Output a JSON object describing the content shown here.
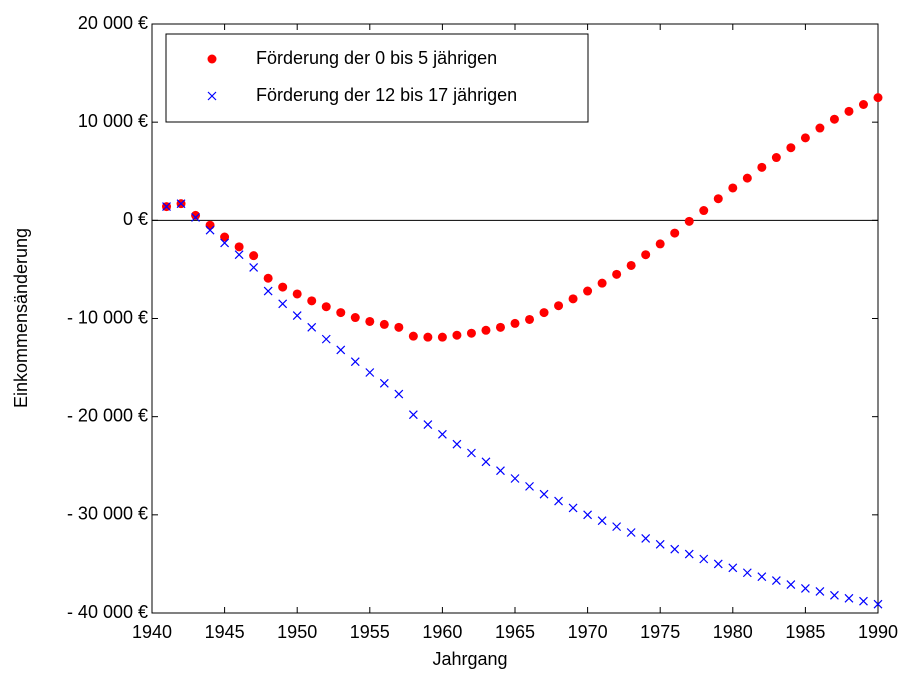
{
  "chart_data": {
    "type": "scatter",
    "xlabel": "Jahrgang",
    "ylabel": "Einkommensänderung",
    "x": [
      1941,
      1942,
      1943,
      1944,
      1945,
      1946,
      1947,
      1948,
      1949,
      1950,
      1951,
      1952,
      1953,
      1954,
      1955,
      1956,
      1957,
      1958,
      1959,
      1960,
      1961,
      1962,
      1963,
      1964,
      1965,
      1966,
      1967,
      1968,
      1969,
      1970,
      1971,
      1972,
      1973,
      1974,
      1975,
      1976,
      1977,
      1978,
      1979,
      1980,
      1981,
      1982,
      1983,
      1984,
      1985,
      1986,
      1987,
      1988,
      1989,
      1990
    ],
    "series": [
      {
        "name": "Förderung der 0 bis 5 jährigen",
        "color": "#ff0000",
        "marker": "circle",
        "values": [
          1400,
          1700,
          500,
          -500,
          -1700,
          -2700,
          -3600,
          -5900,
          -6800,
          -7500,
          -8200,
          -8800,
          -9400,
          -9900,
          -10300,
          -10600,
          -10900,
          -11800,
          -11900,
          -11900,
          -11700,
          -11500,
          -11200,
          -10900,
          -10500,
          -10100,
          -9400,
          -8700,
          -8000,
          -7200,
          -6400,
          -5500,
          -4600,
          -3500,
          -2400,
          -1300,
          -100,
          1000,
          2200,
          3300,
          4300,
          5400,
          6400,
          7400,
          8400,
          9400,
          10300,
          11100,
          11800,
          12500
        ]
      },
      {
        "name": "Förderung der 12 bis 17 jährigen",
        "color": "#0000ff",
        "marker": "x",
        "values": [
          1400,
          1700,
          300,
          -1000,
          -2300,
          -3500,
          -4800,
          -7200,
          -8500,
          -9700,
          -10900,
          -12100,
          -13200,
          -14400,
          -15500,
          -16600,
          -17700,
          -19800,
          -20800,
          -21800,
          -22800,
          -23700,
          -24600,
          -25500,
          -26300,
          -27100,
          -27900,
          -28600,
          -29300,
          -30000,
          -30600,
          -31200,
          -31800,
          -32400,
          -33000,
          -33500,
          -34000,
          -34500,
          -35000,
          -35400,
          -35900,
          -36300,
          -36700,
          -37100,
          -37500,
          -37800,
          -38200,
          -38500,
          -38800,
          -39100
        ]
      }
    ],
    "xlim": [
      1940,
      1990
    ],
    "xticks": [
      1940,
      1945,
      1950,
      1955,
      1960,
      1965,
      1970,
      1975,
      1980,
      1985,
      1990
    ],
    "ylim": [
      -40000,
      20000
    ],
    "yticks": [
      {
        "value": -40000,
        "label": "- 40 000 €"
      },
      {
        "value": -30000,
        "label": "- 30 000 €"
      },
      {
        "value": -20000,
        "label": "- 20 000 €"
      },
      {
        "value": -10000,
        "label": "- 10 000 €"
      },
      {
        "value": 0,
        "label": "0 €"
      },
      {
        "value": 10000,
        "label": "10 000 €"
      },
      {
        "value": 20000,
        "label": "20 000 €"
      }
    ],
    "hline": 0,
    "grid": false,
    "legend": "upper left"
  }
}
